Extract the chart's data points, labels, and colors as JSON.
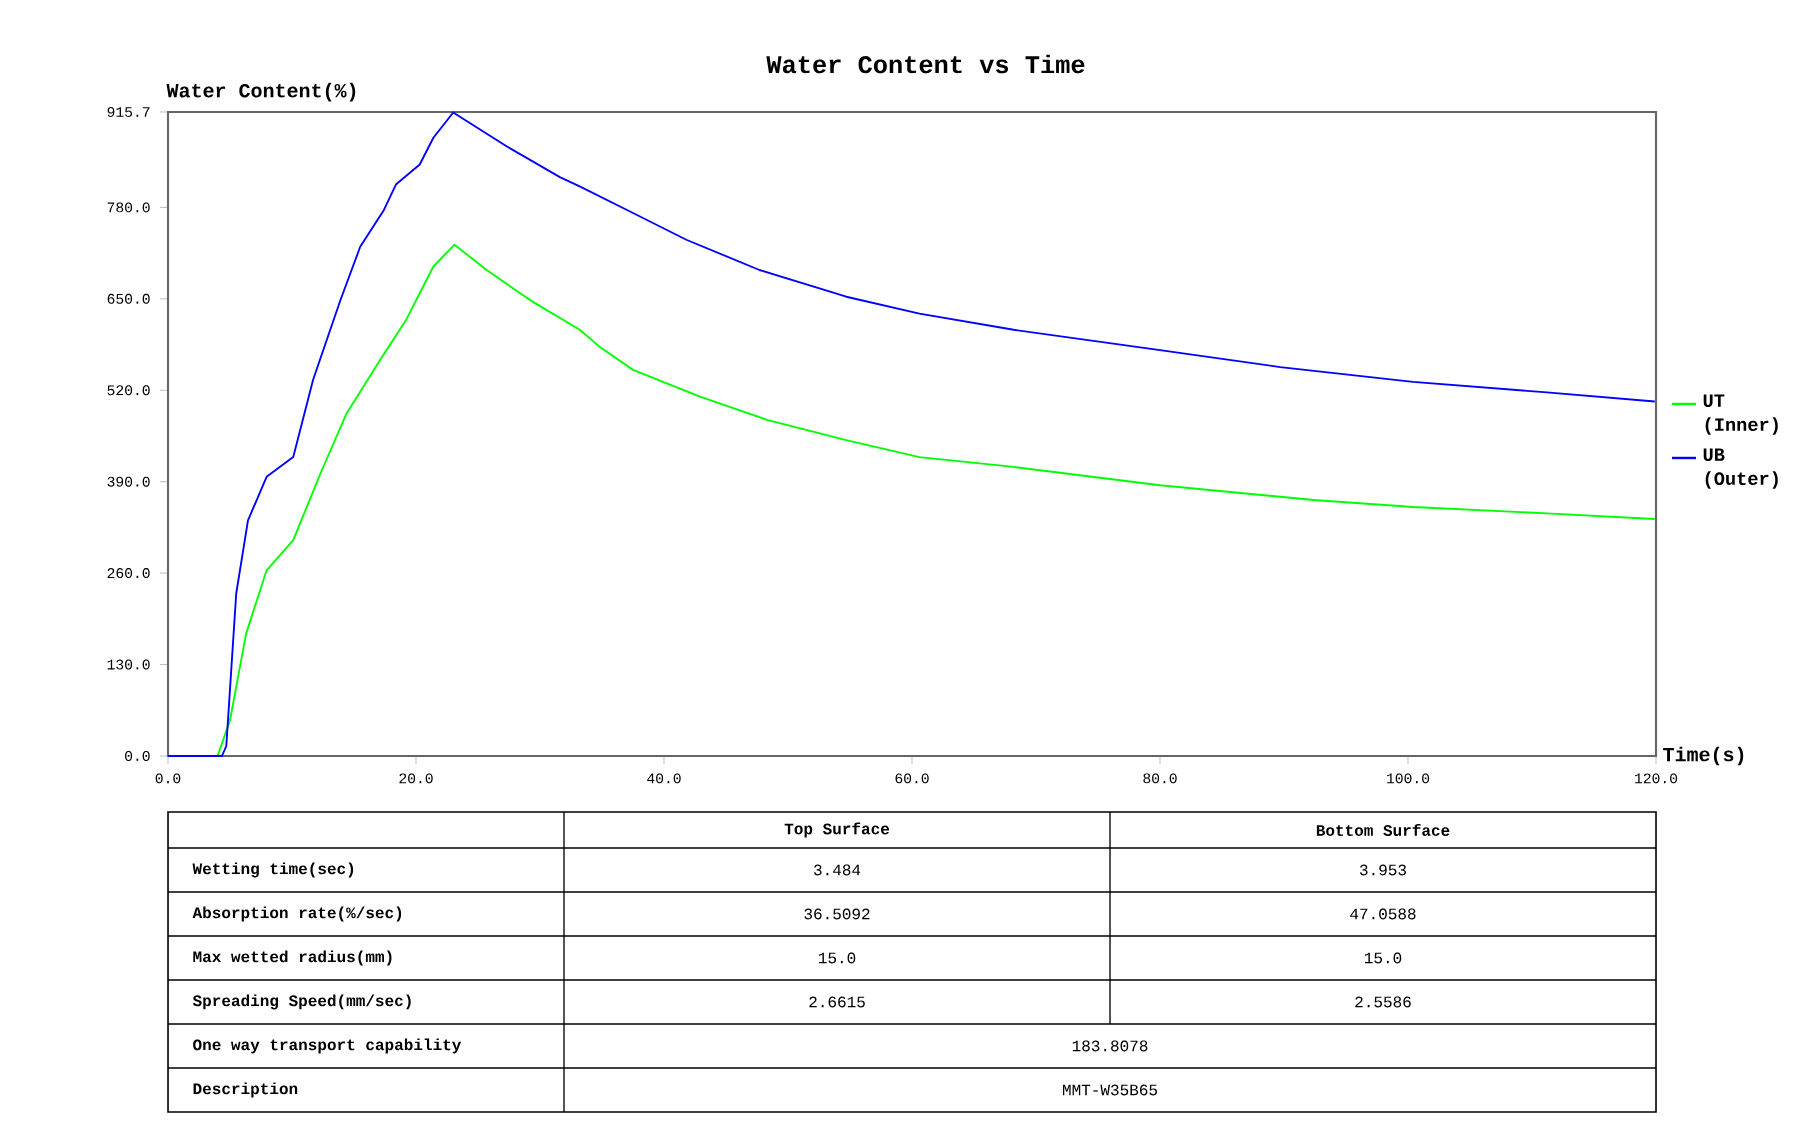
{
  "chart_data": {
    "type": "line",
    "title": "Water Content vs Time",
    "xlabel": "Time(s)",
    "ylabel": "Water Content(%)",
    "xlim": [
      0,
      120
    ],
    "ylim": [
      0,
      915.7
    ],
    "xticks": [
      {
        "value": 0,
        "label": "0.0"
      },
      {
        "value": 20,
        "label": "20.0"
      },
      {
        "value": 40,
        "label": "40.0"
      },
      {
        "value": 60,
        "label": "60.0"
      },
      {
        "value": 80,
        "label": "80.0"
      },
      {
        "value": 100,
        "label": "100.0"
      },
      {
        "value": 120,
        "label": "120.0"
      }
    ],
    "yticks": [
      {
        "value": 0,
        "label": "0.0"
      },
      {
        "value": 130,
        "label": "130.0"
      },
      {
        "value": 260,
        "label": "260.0"
      },
      {
        "value": 390,
        "label": "390.0"
      },
      {
        "value": 520,
        "label": "520.0"
      },
      {
        "value": 650,
        "label": "650.0"
      },
      {
        "value": 780,
        "label": "780.0"
      },
      {
        "value": 915.7,
        "label": "915.7"
      }
    ],
    "legend": "right",
    "series": [
      {
        "name": "UT (Inner)",
        "color": "#00ff00",
        "x": [
          0,
          4.0,
          5.0,
          6.3,
          7.95,
          10.1,
          12.3,
          14.4,
          17.1,
          19.2,
          21.4,
          23.1,
          25.7,
          28.4,
          29.5,
          33.2,
          34.8,
          37.5,
          42.9,
          48.3,
          54.7,
          60.6,
          68.2,
          80,
          92.4,
          100.4,
          111.2,
          119.9
        ],
        "values": [
          0,
          0,
          51,
          174,
          264,
          307,
          402,
          487,
          563,
          620,
          696,
          727,
          691,
          658,
          645,
          606,
          582,
          549,
          511,
          478,
          449,
          425,
          411,
          385,
          364,
          354,
          345,
          337
        ]
      },
      {
        "name": "UB (Outer)",
        "color": "#0000ff",
        "x": [
          0,
          4.35,
          4.7,
          5.5,
          6.45,
          7.95,
          10.1,
          11.7,
          13.9,
          15.5,
          17.4,
          18.4,
          20.3,
          21.4,
          23.0,
          27.3,
          31.6,
          33.2,
          37.5,
          41.8,
          47.7,
          54.7,
          60.6,
          68.2,
          80,
          89.7,
          100.4,
          111.2,
          119.9
        ],
        "values": [
          0,
          0,
          14,
          231,
          335,
          397,
          425,
          535,
          648,
          724,
          776,
          813,
          841,
          879,
          915,
          867,
          823,
          810,
          772,
          734,
          691,
          653,
          629,
          606,
          577,
          553,
          532,
          517,
          504
        ]
      }
    ],
    "annotations": [
      "Top Surface",
      "Bottom Surface",
      "Wetting time(sec)",
      "3.484",
      "3.953",
      "Absorption rate(%/sec)",
      "36.5092",
      "47.0588",
      "Max wetted radius(mm)",
      "15.0",
      "15.0",
      "Spreading Speed(mm/sec)",
      "2.6615",
      "2.5586",
      "One way transport capability",
      "183.8078",
      "Description",
      "MMT-W35B65"
    ]
  }
}
